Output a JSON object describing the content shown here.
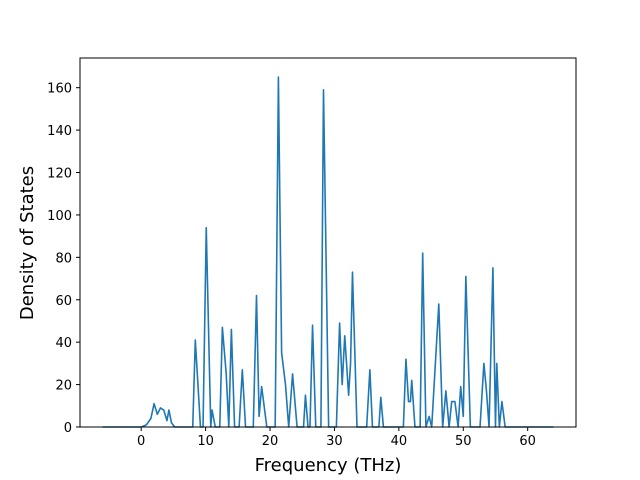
{
  "chart_data": {
    "type": "line",
    "xlabel": "Frequency (THz)",
    "ylabel": "Density of States",
    "color": "#1f77b4",
    "x": [
      -6,
      0,
      0.8,
      1.5,
      2.0,
      2.5,
      3.0,
      3.5,
      4.0,
      4.3,
      4.7,
      5.2,
      8.0,
      8.4,
      9.2,
      9.6,
      10.1,
      10.8,
      11.0,
      11.5,
      12.2,
      12.6,
      13.2,
      13.6,
      14.0,
      14.5,
      15.2,
      15.7,
      16.2,
      17.4,
      17.9,
      18.3,
      18.7,
      19.5,
      20.8,
      21.3,
      21.8,
      22.4,
      22.9,
      23.5,
      24.2,
      25.2,
      25.5,
      25.9,
      26.2,
      26.6,
      27.1,
      27.9,
      28.3,
      29.1,
      30.3,
      30.8,
      31.2,
      31.6,
      32.2,
      32.5,
      32.8,
      33.5,
      35.0,
      35.5,
      35.9,
      36.9,
      37.2,
      37.6,
      40.7,
      41.1,
      41.5,
      41.8,
      42.0,
      42.5,
      43.3,
      43.7,
      44.2,
      44.7,
      45.1,
      46.2,
      46.8,
      47.3,
      47.8,
      48.2,
      48.7,
      49.2,
      49.6,
      50.0,
      50.4,
      51.1,
      52.6,
      53.2,
      53.6,
      54.0,
      54.6,
      55.0,
      55.2,
      55.6,
      56.0,
      56.5,
      64
    ],
    "values": [
      0,
      0,
      1,
      4,
      11,
      6,
      9,
      8,
      3,
      8,
      2,
      0,
      0,
      41,
      0,
      0,
      94,
      0,
      8,
      0,
      0,
      47,
      25,
      0,
      46,
      0,
      0,
      27,
      0,
      0,
      62,
      5,
      19,
      0,
      0,
      165,
      35,
      20,
      0,
      25,
      0,
      0,
      15,
      0,
      0,
      48,
      0,
      0,
      159,
      0,
      0,
      49,
      20,
      43,
      15,
      30,
      73,
      0,
      0,
      27,
      0,
      0,
      14,
      0,
      0,
      32,
      12,
      12,
      22,
      0,
      0,
      82,
      0,
      5,
      0,
      58,
      0,
      17,
      0,
      12,
      12,
      0,
      19,
      5,
      71,
      0,
      0,
      30,
      17,
      0,
      75,
      0,
      30,
      0,
      12,
      0,
      0
    ],
    "xlim": [
      -9.5,
      67.5
    ],
    "ylim": [
      0,
      174
    ],
    "xticks": [
      0,
      10,
      20,
      30,
      40,
      50,
      60
    ],
    "yticks": [
      0,
      20,
      40,
      60,
      80,
      100,
      120,
      140,
      160
    ]
  }
}
